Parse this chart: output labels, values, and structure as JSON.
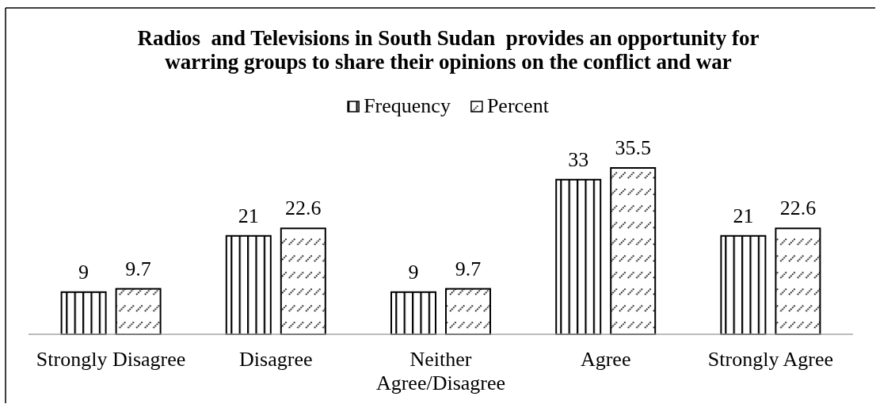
{
  "chart_data": {
    "type": "bar",
    "title": "Radios  and Televisions in South Sudan  provides an opportunity for warring groups to share their opinions on the conflict and war",
    "categories": [
      "Strongly Disagree",
      "Disagree",
      "Neither Agree/Disagree",
      "Agree",
      "Strongly Agree"
    ],
    "series": [
      {
        "name": "Frequency",
        "color": "#000000",
        "values": [
          9,
          21,
          9,
          33,
          21
        ]
      },
      {
        "name": "Percent",
        "color": "#000000",
        "values": [
          9.7,
          22.6,
          9.7,
          35.5,
          22.6
        ]
      }
    ],
    "data_labels": true,
    "legend": "top"
  }
}
